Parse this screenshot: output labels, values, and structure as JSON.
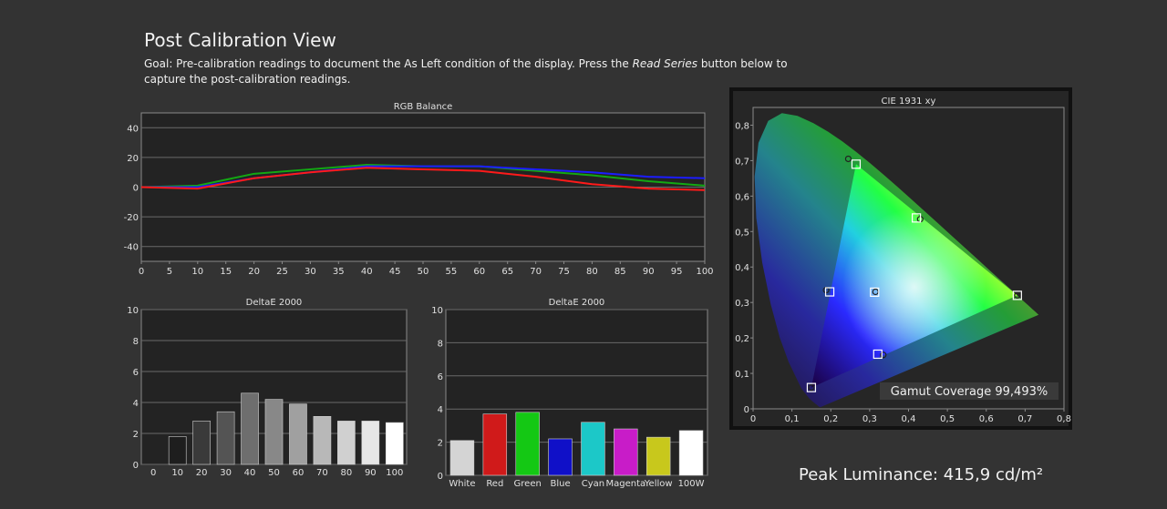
{
  "page": {
    "title": "Post Calibration View",
    "goal_prefix": "Goal: Pre-calibration readings to document the As Left condition of the display. Press the ",
    "goal_emphasis": "Read Series",
    "goal_suffix": " button below to capture the post-calibration readings.",
    "peak_luminance": "Peak Luminance: 415,9 cd/m²"
  },
  "colors": {
    "background": "#333333",
    "plot_bg": "#222222",
    "red": "#ff1a1a",
    "green": "#13a813",
    "blue": "#1c1cff"
  },
  "chart_data": [
    {
      "type": "line",
      "title": "RGB Balance",
      "x": [
        0,
        10,
        20,
        30,
        40,
        50,
        60,
        70,
        80,
        90,
        100
      ],
      "ylim": [
        -50,
        50
      ],
      "xlim": [
        0,
        100
      ],
      "yticks": [
        "40",
        "20",
        "0",
        "-20",
        "-40"
      ],
      "xticks": [
        "0",
        "5",
        "10",
        "15",
        "20",
        "25",
        "30",
        "35",
        "40",
        "45",
        "50",
        "55",
        "60",
        "65",
        "70",
        "75",
        "80",
        "85",
        "90",
        "95",
        "100"
      ],
      "grid": true,
      "series": [
        {
          "color": "#13a813",
          "values": [
            0,
            1,
            9,
            12,
            15,
            14,
            14,
            11,
            8,
            4,
            1
          ]
        },
        {
          "color": "#1c1cff",
          "values": [
            0,
            0,
            6,
            10,
            14,
            14,
            14,
            12,
            10,
            7,
            6
          ]
        },
        {
          "color": "#ff1a1a",
          "values": [
            0,
            -1,
            6,
            10,
            13,
            12,
            11,
            7,
            2,
            -1,
            -2
          ]
        }
      ]
    },
    {
      "type": "bar",
      "title": "DeltaE 2000",
      "categories": [
        "0",
        "10",
        "20",
        "30",
        "40",
        "50",
        "60",
        "70",
        "80",
        "90",
        "100"
      ],
      "values": [
        0,
        1.8,
        2.8,
        3.4,
        4.6,
        4.2,
        3.9,
        3.1,
        2.8,
        2.8,
        2.7
      ],
      "bar_colors": [
        "#000000",
        "#1e1e1e",
        "#3a3a3a",
        "#545454",
        "#6e6e6e",
        "#888888",
        "#a0a0a0",
        "#b8b8b8",
        "#d0d0d0",
        "#e6e6e6",
        "#ffffff"
      ],
      "ylim": [
        0,
        10
      ],
      "yticks": [
        "10",
        "8",
        "6",
        "4",
        "2",
        "0"
      ],
      "grid": true
    },
    {
      "type": "bar",
      "title": "DeltaE 2000",
      "categories": [
        "White",
        "Red",
        "Green",
        "Blue",
        "Cyan",
        "Magenta",
        "Yellow",
        "100W"
      ],
      "values": [
        2.1,
        3.7,
        3.8,
        2.2,
        3.2,
        2.8,
        2.3,
        2.7
      ],
      "bar_colors": [
        "#d4d4d4",
        "#d01a1a",
        "#14c814",
        "#1010c8",
        "#1cc8c8",
        "#c81cc8",
        "#c8c81c",
        "#ffffff"
      ],
      "ylim": [
        0,
        10
      ],
      "yticks": [
        "10",
        "8",
        "6",
        "4",
        "2",
        "0"
      ],
      "grid": true
    },
    {
      "type": "scatter",
      "title": "CIE 1931 xy",
      "xlim": [
        0,
        0.8
      ],
      "ylim": [
        0,
        0.85
      ],
      "xticks": [
        "0",
        "0,1",
        "0,2",
        "0,3",
        "0,4",
        "0,5",
        "0,6",
        "0,7",
        "0,8"
      ],
      "yticks": [
        "0,8",
        "0,7",
        "0,6",
        "0,5",
        "0,4",
        "0,3",
        "0,2",
        "0,1",
        "0"
      ],
      "gamut_coverage": "Gamut Coverage 99,493%",
      "targets": [
        {
          "x": 0.68,
          "y": 0.32
        },
        {
          "x": 0.265,
          "y": 0.69
        },
        {
          "x": 0.15,
          "y": 0.06
        },
        {
          "x": 0.3127,
          "y": 0.329
        },
        {
          "x": 0.1972,
          "y": 0.3299
        },
        {
          "x": 0.3209,
          "y": 0.1542
        },
        {
          "x": 0.4202,
          "y": 0.5384
        }
      ],
      "measured": [
        {
          "x": 0.68,
          "y": 0.32
        },
        {
          "x": 0.245,
          "y": 0.705
        },
        {
          "x": 0.15,
          "y": 0.06
        },
        {
          "x": 0.315,
          "y": 0.33
        },
        {
          "x": 0.188,
          "y": 0.335
        },
        {
          "x": 0.335,
          "y": 0.152
        },
        {
          "x": 0.43,
          "y": 0.535
        }
      ]
    }
  ]
}
